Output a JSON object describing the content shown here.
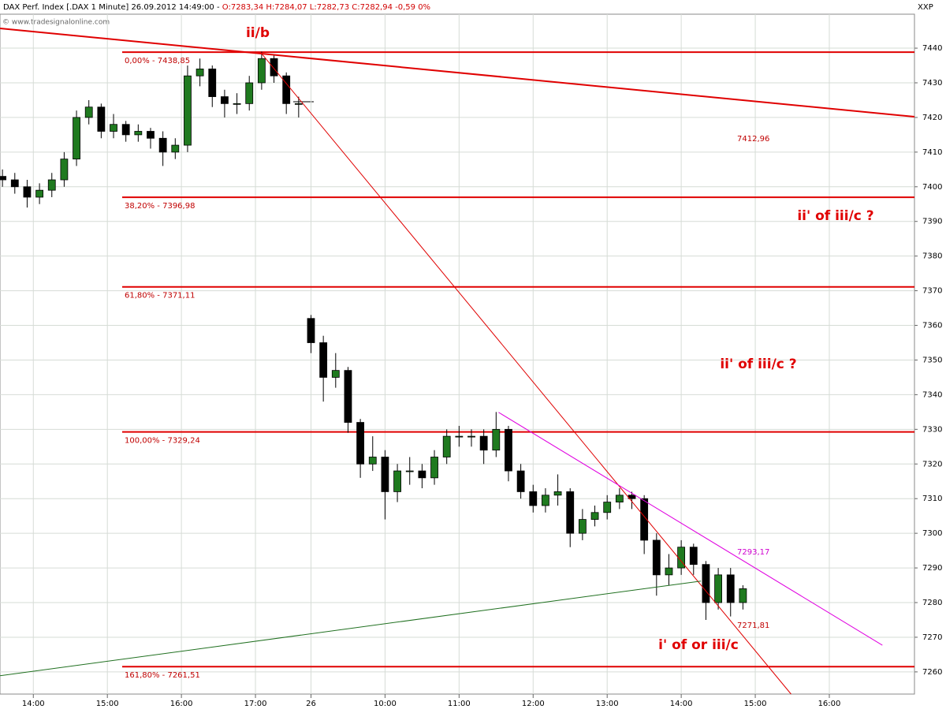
{
  "chart_data": {
    "type": "candlestick",
    "header": "DAX Perf. Index [.DAX  1 Minute] 26.09.2012 14:49:00 - ",
    "quote": "O:7283,34 H:7284,07 L:7282,73 C:7282,94 -0,59 0%",
    "symbol": "XXP",
    "source": "© www.tradesignalonline.com",
    "xlim": [
      -27,
      714
    ],
    "ylim": [
      7253.6,
      7449.8
    ],
    "xticks": [
      {
        "value": 0,
        "label": "14:00"
      },
      {
        "value": 60,
        "label": "15:00"
      },
      {
        "value": 120,
        "label": "16:00"
      },
      {
        "value": 180,
        "label": "17:00"
      },
      {
        "value": 225,
        "label": "26"
      },
      {
        "value": 285,
        "label": "10:00"
      },
      {
        "value": 345,
        "label": "11:00"
      },
      {
        "value": 405,
        "label": "12:00"
      },
      {
        "value": 465,
        "label": "13:00"
      },
      {
        "value": 525,
        "label": "14:00"
      },
      {
        "value": 585,
        "label": "15:00"
      },
      {
        "value": 645,
        "label": "16:00"
      }
    ],
    "yticks": [
      7260,
      7270,
      7280,
      7290,
      7300,
      7310,
      7320,
      7330,
      7340,
      7350,
      7360,
      7370,
      7380,
      7390,
      7400,
      7410,
      7420,
      7430,
      7440
    ],
    "grid": true,
    "up_color": "#1f7a1f",
    "down_color": "#000000",
    "x": [
      -25,
      -15,
      -5,
      5,
      15,
      25,
      35,
      45,
      55,
      65,
      75,
      85,
      95,
      105,
      115,
      125,
      135,
      145,
      155,
      165,
      175,
      185,
      195,
      205,
      215,
      225,
      235,
      245,
      255,
      265,
      275,
      285,
      295,
      305,
      315,
      325,
      335,
      345,
      355,
      365,
      375,
      385,
      395,
      405,
      415,
      425,
      435,
      445,
      455,
      465,
      475,
      485,
      495,
      505,
      515,
      525,
      535,
      545,
      555,
      565,
      575
    ],
    "open": [
      7403,
      7402,
      7400,
      7397,
      7399,
      7402,
      7408,
      7420,
      7423,
      7416,
      7418,
      7415,
      7416,
      7414,
      7410,
      7412,
      7432,
      7434,
      7426,
      7424,
      7424,
      7430,
      7437,
      7432,
      7424,
      7362,
      7355,
      7345,
      7347,
      7332,
      7320,
      7322,
      7312,
      7318,
      7318,
      7316,
      7322,
      7328,
      7328,
      7328,
      7324,
      7330,
      7318,
      7312,
      7308,
      7311,
      7312,
      7300,
      7304,
      7306,
      7309,
      7311,
      7310,
      7298,
      7288,
      7290,
      7296,
      7291,
      7280,
      7288,
      7280
    ],
    "high": [
      7405,
      7404,
      7402,
      7401,
      7404,
      7410,
      7422,
      7425,
      7424,
      7421,
      7419,
      7418,
      7417,
      7416,
      7414,
      7435,
      7437,
      7435,
      7428,
      7427,
      7432,
      7439,
      7438,
      7433,
      7426,
      7363,
      7357,
      7352,
      7348,
      7333,
      7328,
      7324,
      7320,
      7322,
      7320,
      7324,
      7330,
      7331,
      7330,
      7330,
      7335,
      7331,
      7320,
      7314,
      7313,
      7317,
      7313,
      7307,
      7308,
      7311,
      7313,
      7312,
      7311,
      7300,
      7294,
      7298,
      7297,
      7292,
      7290,
      7290,
      7285
    ],
    "low": [
      7400,
      7398,
      7394,
      7395,
      7397,
      7400,
      7406,
      7418,
      7414,
      7414,
      7413,
      7413,
      7411,
      7406,
      7408,
      7410,
      7429,
      7423,
      7420,
      7421,
      7422,
      7428,
      7430,
      7421,
      7420,
      7352,
      7338,
      7342,
      7329,
      7316,
      7318,
      7304,
      7309,
      7314,
      7313,
      7314,
      7320,
      7325,
      7325,
      7320,
      7322,
      7315,
      7310,
      7306,
      7306,
      7308,
      7296,
      7298,
      7302,
      7304,
      7307,
      7307,
      7294,
      7282,
      7285,
      7288,
      7288,
      7275,
      7278,
      7276,
      7278
    ],
    "close": [
      7402,
      7400,
      7397,
      7399,
      7402,
      7408,
      7420,
      7423,
      7416,
      7418,
      7415,
      7416,
      7414,
      7410,
      7412,
      7432,
      7434,
      7426,
      7424,
      7424,
      7430,
      7437,
      7432,
      7424,
      7424,
      7355,
      7345,
      7347,
      7332,
      7320,
      7322,
      7312,
      7318,
      7318,
      7316,
      7322,
      7328,
      7328,
      7328,
      7324,
      7330,
      7318,
      7312,
      7308,
      7311,
      7312,
      7300,
      7304,
      7306,
      7309,
      7311,
      7310,
      7298,
      7288,
      7290,
      7296,
      7291,
      7280,
      7288,
      7280,
      7284
    ],
    "levels": [
      {
        "value": 7438.85,
        "label": "0,00% - 7438,85"
      },
      {
        "value": 7396.98,
        "label": "38,20% - 7396,98"
      },
      {
        "value": 7371.11,
        "label": "61,80% - 7371,11"
      },
      {
        "value": 7329.24,
        "label": "100,00% - 7329,24"
      },
      {
        "value": 7261.51,
        "label": "161,80% - 7261,51"
      }
    ],
    "level_color": "#e00000",
    "trendlines": [
      {
        "x": [
          -27,
          714
        ],
        "values": [
          7445.7,
          7420.2
        ],
        "color": "#e00000"
      },
      {
        "x": [
          184,
          614
        ],
        "values": [
          7438.85,
          7253.6
        ],
        "color": "#e00000"
      },
      {
        "x": [
          377,
          688
        ],
        "values": [
          7334.9,
          7267.7
        ],
        "color": "#e000e0"
      },
      {
        "x": [
          -27,
          541
        ],
        "values": [
          7258.9,
          7286.2
        ],
        "color": "#207020"
      }
    ],
    "line_labels": [
      {
        "text": "7412,96",
        "color": "#c00000"
      },
      {
        "text": "7293,17",
        "color": "#d000d0"
      },
      {
        "text": "7271,81",
        "color": "#c00000"
      }
    ],
    "wave_labels": [
      "ii/b",
      "ii' of iii/c ?",
      "ii' of iii/c ?",
      "i' of or iii/c"
    ],
    "wave_color": "#e00000"
  }
}
